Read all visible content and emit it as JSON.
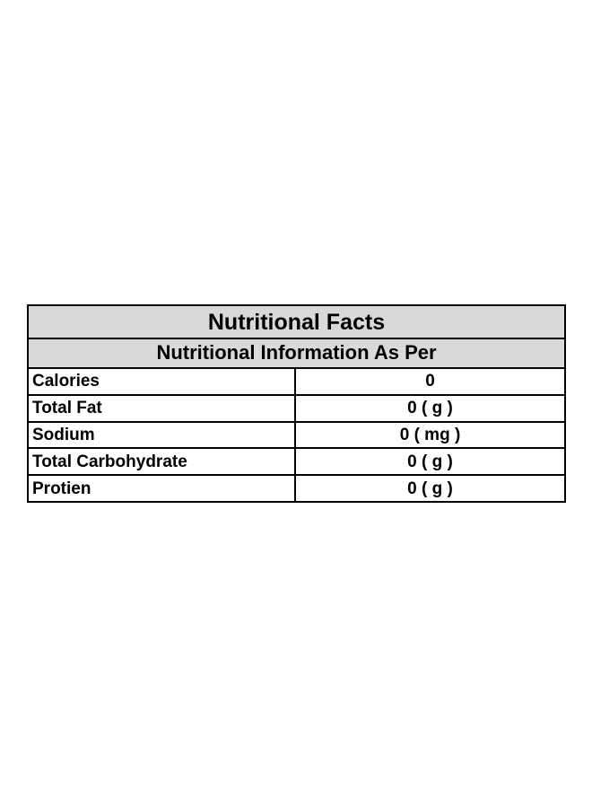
{
  "table": {
    "title": "Nutritional Facts",
    "subtitle": "Nutritional Information As Per",
    "rows": [
      {
        "label": "Calories",
        "value": "0"
      },
      {
        "label": "Total Fat",
        "value": "0 ( g )"
      },
      {
        "label": "Sodium",
        "value": "0 ( mg )"
      },
      {
        "label": "Total Carbohydrate",
        "value": "0 ( g )"
      },
      {
        "label": "Protien",
        "value": "0 ( g )"
      }
    ]
  },
  "colors": {
    "header_background": "#d9d9d9",
    "border": "#000000",
    "text": "#000000"
  }
}
